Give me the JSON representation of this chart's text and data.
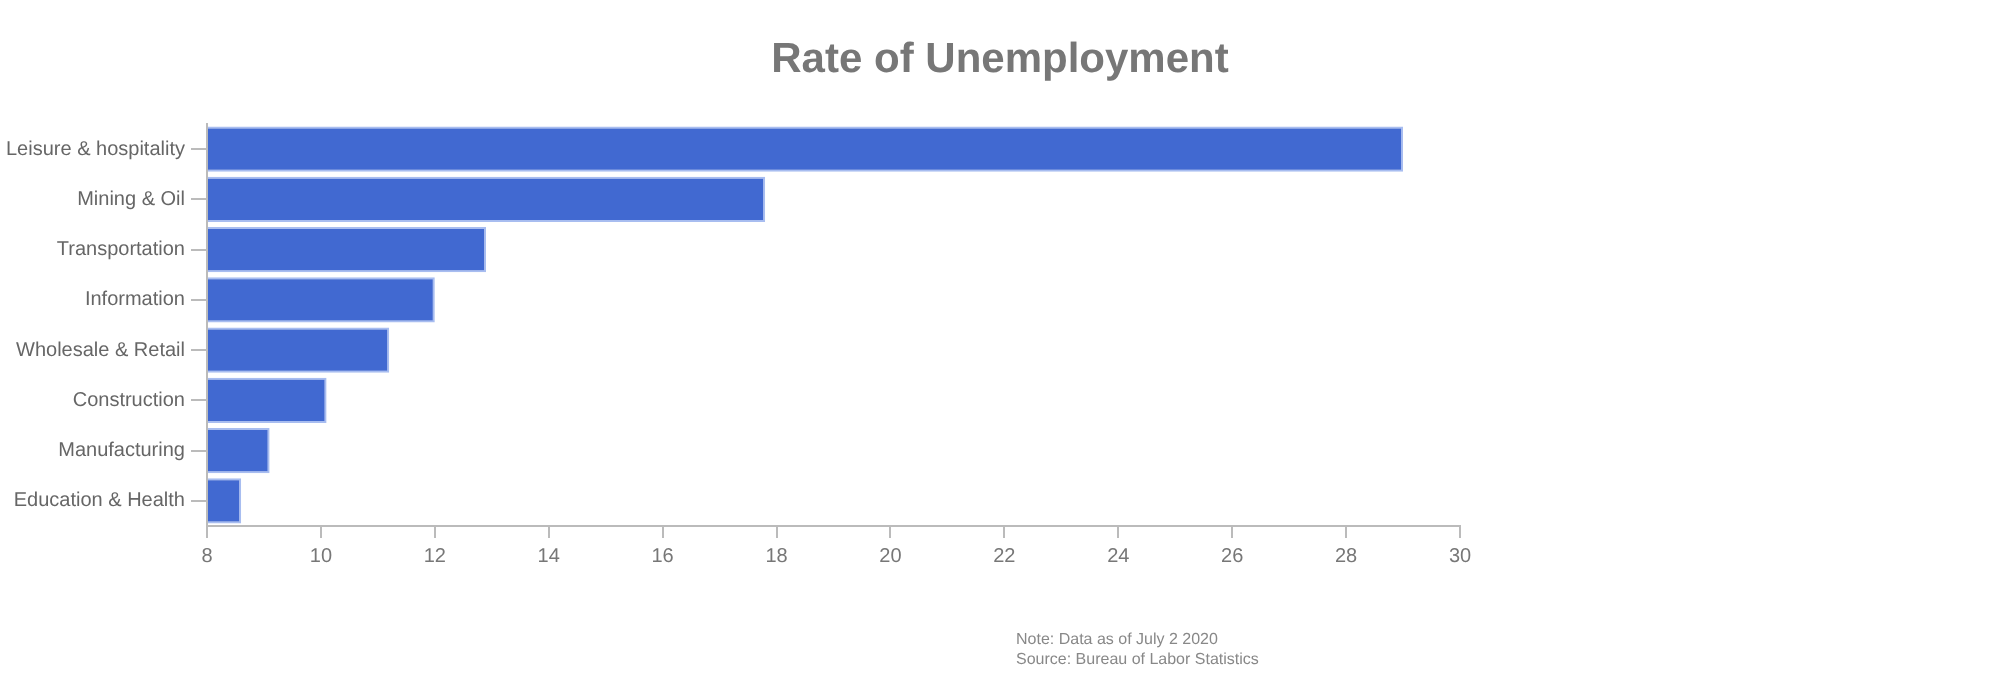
{
  "chart_data": {
    "type": "bar",
    "orientation": "horizontal",
    "title": "Rate of Unemployment",
    "categories": [
      "Leisure & hospitality",
      "Mining & Oil",
      "Transportation",
      "Information",
      "Wholesale & Retail",
      "Construction",
      "Manufacturing",
      "Education & Health"
    ],
    "values": [
      29.0,
      17.8,
      12.9,
      12.0,
      11.2,
      10.1,
      9.1,
      8.6
    ],
    "color": "#4169d1",
    "xlim": [
      8,
      30
    ],
    "xticks": [
      8,
      10,
      12,
      14,
      16,
      18,
      20,
      22,
      24,
      26,
      28,
      30
    ],
    "grid": false,
    "legend": false,
    "annotations": [
      "Note: Data as of July 2 2020",
      "Source: Bureau of Labor Statistics"
    ]
  }
}
